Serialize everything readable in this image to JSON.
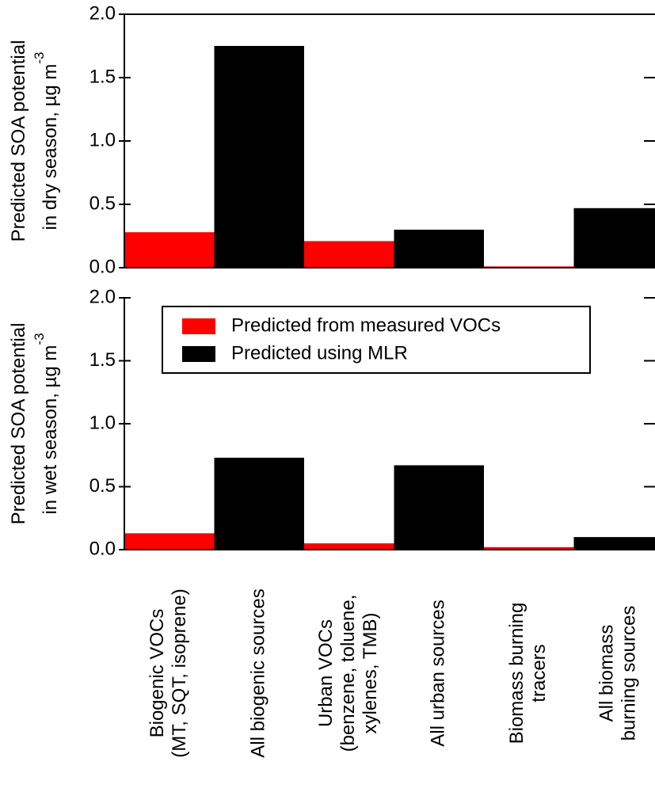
{
  "chart_data": [
    {
      "type": "bar",
      "ylabel": [
        "Predicted SOA potential",
        "in dry season, µg m"
      ],
      "ylabel_exponent": "-3",
      "series": [
        {
          "color": "#ff0000",
          "values": [
            0.28,
            null,
            0.21,
            null,
            0.01,
            null
          ]
        },
        {
          "color": "#000000",
          "values": [
            null,
            1.75,
            null,
            0.3,
            null,
            0.47
          ]
        }
      ],
      "ylim": [
        0,
        2.0
      ],
      "yticks": [
        {
          "value": 0,
          "label": "0.0"
        },
        0.5,
        {
          "value": 1,
          "label": "1.0"
        },
        1.5,
        {
          "value": 2,
          "label": "2.0"
        }
      ]
    },
    {
      "type": "bar",
      "ylabel": [
        "Predicted SOA potential",
        "in wet season, µg m"
      ],
      "ylabel_exponent": "-3",
      "categories": [
        [
          "Biogenic VOCs",
          "(MT, SQT, isoprene)"
        ],
        [
          "All biogenic sources"
        ],
        [
          "Urban VOCs",
          "(benzene, toluene,",
          "xylenes, TMB)"
        ],
        [
          "All urban sources"
        ],
        [
          "Biomass burning",
          "tracers"
        ],
        [
          "All biomass",
          "burning sources"
        ]
      ],
      "series": [
        {
          "name": "Predicted from measured VOCs",
          "color": "#ff0000",
          "values": [
            0.13,
            null,
            0.05,
            null,
            0.02,
            null
          ]
        },
        {
          "name": "Predicted using MLR",
          "color": "#000000",
          "values": [
            null,
            0.73,
            null,
            0.67,
            null,
            0.1
          ]
        }
      ],
      "ylim": [
        0,
        2.0
      ],
      "yticks": [
        {
          "value": 0,
          "label": "0.0"
        },
        0.5,
        {
          "value": 1,
          "label": "1.0"
        },
        1.5,
        {
          "value": 2,
          "label": "2.0"
        }
      ],
      "legend": "top"
    }
  ]
}
